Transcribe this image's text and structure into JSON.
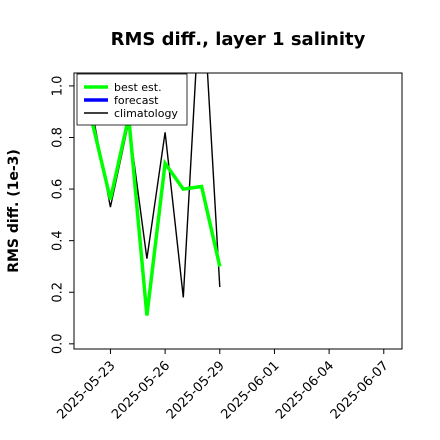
{
  "chart_data": {
    "type": "line",
    "title": "RMS diff., layer 1 salinity",
    "xlabel": "",
    "ylabel": "RMS diff. (1e-3)",
    "xlim": [
      "2025-05-21",
      "2025-06-08"
    ],
    "ylim": [
      -0.02,
      1.05
    ],
    "yticks": [
      0.0,
      0.2,
      0.4,
      0.6,
      0.8,
      1.0
    ],
    "ytick_labels": [
      "0.0",
      "0.2",
      "0.4",
      "0.6",
      "0.8",
      "1.0"
    ],
    "xticks": [
      "2025-05-23",
      "2025-05-26",
      "2025-05-29",
      "2025-06-01",
      "2025-06-04",
      "2025-06-07"
    ],
    "xtick_colors": [
      "#000000",
      "#000000",
      "#008000",
      "#000000",
      "#000000",
      "#000000"
    ],
    "grid": false,
    "legend_position": "top-left",
    "series": [
      {
        "name": "best est.",
        "color": "#00ff00",
        "x": [
          "2025-05-22",
          "2025-05-23",
          "2025-05-24",
          "2025-05-25",
          "2025-05-26",
          "2025-05-27",
          "2025-05-28",
          "2025-05-29"
        ],
        "values": [
          0.86,
          0.56,
          0.88,
          0.11,
          0.7,
          0.6,
          0.61,
          0.3
        ]
      },
      {
        "name": "forecast",
        "color": "#0000ff",
        "x": [],
        "values": []
      },
      {
        "name": "climatology",
        "color": "#000000",
        "x": [
          "2025-05-22",
          "2025-05-23",
          "2025-05-24",
          "2025-05-25",
          "2025-05-26",
          "2025-05-27",
          "2025-05-28",
          "2025-05-29"
        ],
        "values": [
          0.9,
          0.53,
          0.86,
          0.33,
          0.82,
          0.18,
          1.45,
          0.22
        ]
      }
    ]
  }
}
